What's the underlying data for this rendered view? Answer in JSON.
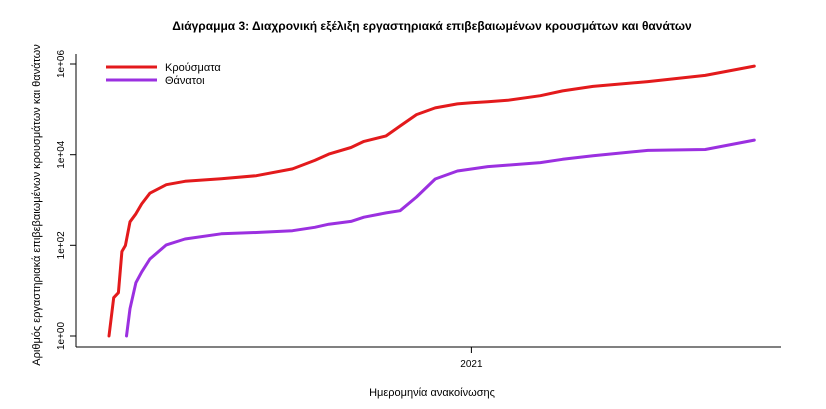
{
  "chart_data": {
    "type": "line",
    "title": "Διάγραμμα 3: Διαχρονική εξέλιξη εργαστηριακά επιβεβαιωμένων κρουσμάτων και θανάτων",
    "xlabel": "Ημερομηνία ανακοίνωσης",
    "ylabel": "Αριθμός εργαστηριακά επιβεβαιωμένων κρουσμάτων και θανάτων",
    "x_scale": "time",
    "x_ticks": [
      "2021"
    ],
    "y_scale": "log",
    "y_ticks": [
      "1e+00",
      "1e+02",
      "1e+04",
      "1e+06"
    ],
    "ylim": [
      1,
      1000000
    ],
    "legend": {
      "position": "top-left"
    },
    "grid": false,
    "series": [
      {
        "name": "Κρούσματα",
        "color": "#e31a1c",
        "points": [
          [
            "2020-02-26",
            1
          ],
          [
            "2020-03-01",
            7
          ],
          [
            "2020-03-05",
            9
          ],
          [
            "2020-03-08",
            73
          ],
          [
            "2020-03-11",
            99
          ],
          [
            "2020-03-15",
            331
          ],
          [
            "2020-03-20",
            495
          ],
          [
            "2020-03-25",
            821
          ],
          [
            "2020-04-01",
            1415
          ],
          [
            "2020-04-15",
            2170
          ],
          [
            "2020-05-01",
            2591
          ],
          [
            "2020-06-01",
            2937
          ],
          [
            "2020-07-01",
            3432
          ],
          [
            "2020-08-01",
            4855
          ],
          [
            "2020-08-20",
            7472
          ],
          [
            "2020-09-01",
            10317
          ],
          [
            "2020-09-20",
            14400
          ],
          [
            "2020-10-01",
            19613
          ],
          [
            "2020-10-20",
            25902
          ],
          [
            "2020-11-01",
            42877
          ],
          [
            "2020-11-15",
            76403
          ],
          [
            "2020-12-01",
            107470
          ],
          [
            "2020-12-20",
            131508
          ],
          [
            "2021-01-01",
            140099
          ],
          [
            "2021-01-15",
            147000
          ],
          [
            "2021-02-01",
            158000
          ],
          [
            "2021-03-01",
            200000
          ],
          [
            "2021-03-20",
            255000
          ],
          [
            "2021-04-15",
            320000
          ],
          [
            "2021-06-01",
            410000
          ],
          [
            "2021-07-20",
            560000
          ],
          [
            "2021-08-31",
            900000
          ]
        ]
      },
      {
        "name": "Θάνατοι",
        "color": "#9b30e0",
        "points": [
          [
            "2020-03-12",
            1
          ],
          [
            "2020-03-15",
            4
          ],
          [
            "2020-03-20",
            15
          ],
          [
            "2020-03-25",
            26
          ],
          [
            "2020-04-01",
            50
          ],
          [
            "2020-04-15",
            102
          ],
          [
            "2020-05-01",
            138
          ],
          [
            "2020-06-01",
            180
          ],
          [
            "2020-07-01",
            192
          ],
          [
            "2020-08-01",
            210
          ],
          [
            "2020-08-20",
            250
          ],
          [
            "2020-09-01",
            293
          ],
          [
            "2020-09-20",
            338
          ],
          [
            "2020-10-01",
            417
          ],
          [
            "2020-10-20",
            520
          ],
          [
            "2020-11-01",
            581
          ],
          [
            "2020-11-15",
            1165
          ],
          [
            "2020-12-01",
            2902
          ],
          [
            "2020-12-20",
            4367
          ],
          [
            "2021-01-01",
            4838
          ],
          [
            "2021-01-15",
            5450
          ],
          [
            "2021-02-01",
            5900
          ],
          [
            "2021-03-01",
            6700
          ],
          [
            "2021-03-20",
            7900
          ],
          [
            "2021-04-15",
            9500
          ],
          [
            "2021-06-01",
            12400
          ],
          [
            "2021-07-20",
            13000
          ],
          [
            "2021-08-31",
            21000
          ]
        ]
      }
    ]
  }
}
